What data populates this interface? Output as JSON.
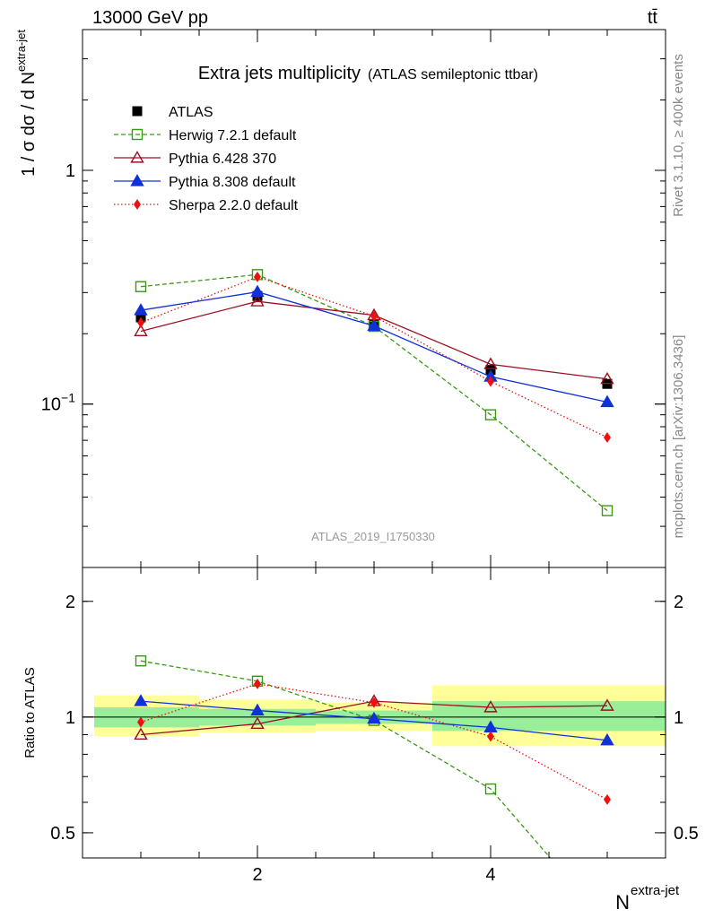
{
  "header": {
    "energy_label": "13000 GeV pp",
    "process_label": "tt̄"
  },
  "side_labels": {
    "rivet": "Rivet 3.1.10, ≥ 400k events",
    "mcplots": "mcplots.cern.ch [arXiv:1306.3436]"
  },
  "chart_data": [
    {
      "type": "line",
      "title": "Extra jets multiplicity",
      "subtitle": "(ATLAS semileptonic ttbar)",
      "analysis_label": "ATLAS_2019_I1750330",
      "xlabel": "N",
      "xlabel_sup": "extra-jet",
      "ylabel": "1 / σ dσ / d N",
      "ylabel_sup": "extra-jet",
      "yscale": "log",
      "xlim": [
        0.5,
        5.5
      ],
      "ylim": [
        0.02,
        4.0
      ],
      "grid": false,
      "legend_position": "top-left",
      "yticks": [
        {
          "value": 1,
          "label": "1"
        },
        {
          "value": 0.1,
          "label": "10",
          "sup": "−1"
        }
      ],
      "x": [
        1,
        2,
        3,
        4,
        5
      ],
      "series": [
        {
          "name": "ATLAS",
          "color": "#000000",
          "dash": "",
          "marker": "square-filled",
          "values": [
            0.235,
            0.29,
            0.22,
            0.14,
            0.122
          ]
        },
        {
          "name": "Herwig 7.2.1 default",
          "color": "#3a9a14",
          "dash": "5,3",
          "marker": "square-open",
          "values": [
            0.318,
            0.358,
            0.215,
            0.09,
            0.035
          ]
        },
        {
          "name": "Pythia 6.428 370",
          "color": "#9b1020",
          "dash": "",
          "marker": "triangle-open",
          "values": [
            0.205,
            0.275,
            0.24,
            0.148,
            0.128
          ]
        },
        {
          "name": "Pythia 8.308 default",
          "color": "#1030d8",
          "dash": "",
          "marker": "triangle-filled",
          "values": [
            0.252,
            0.302,
            0.216,
            0.131,
            0.102
          ]
        },
        {
          "name": "Sherpa 2.2.0 default",
          "color": "#ee1010",
          "dash": "1.5,2.5",
          "marker": "diamond-filled",
          "values": [
            0.223,
            0.35,
            0.238,
            0.125,
            0.072
          ]
        }
      ]
    },
    {
      "type": "line",
      "ylabel": "Ratio to ATLAS",
      "xlabel": "N",
      "xlabel_sup": "extra-jet",
      "yscale": "log",
      "xlim": [
        0.5,
        5.5
      ],
      "ylim": [
        0.43,
        2.45
      ],
      "grid": false,
      "reference_line": 1,
      "xticks": [
        {
          "value": 2,
          "label": "2"
        },
        {
          "value": 4,
          "label": "4"
        }
      ],
      "yticks": [
        {
          "value": 0.5,
          "label": "0.5"
        },
        {
          "value": 1,
          "label": "1"
        },
        {
          "value": 2,
          "label": "2"
        }
      ],
      "x": [
        1,
        2,
        3,
        4,
        5
      ],
      "uncertainty_bins": [
        {
          "xlo": 0.6,
          "xhi": 1.5,
          "stat": [
            0.94,
            1.06
          ],
          "total": [
            0.89,
            1.14
          ]
        },
        {
          "xlo": 1.5,
          "xhi": 2.5,
          "stat": [
            0.95,
            1.05
          ],
          "total": [
            0.91,
            1.11
          ]
        },
        {
          "xlo": 2.5,
          "xhi": 3.5,
          "stat": [
            0.96,
            1.04
          ],
          "total": [
            0.92,
            1.09
          ]
        },
        {
          "xlo": 3.5,
          "xhi": 5.5,
          "stat": [
            0.92,
            1.1
          ],
          "total": [
            0.84,
            1.21
          ]
        }
      ],
      "series": [
        {
          "name": "Herwig 7.2.1 default",
          "color": "#3a9a14",
          "dash": "5,3",
          "marker": "square-open",
          "values": [
            1.4,
            1.24,
            0.98,
            0.65,
            0.29
          ]
        },
        {
          "name": "Pythia 6.428 370",
          "color": "#9b1020",
          "dash": "",
          "marker": "triangle-open",
          "values": [
            0.9,
            0.96,
            1.1,
            1.06,
            1.07
          ]
        },
        {
          "name": "Pythia 8.308 default",
          "color": "#1030d8",
          "dash": "",
          "marker": "triangle-filled",
          "values": [
            1.1,
            1.04,
            0.99,
            0.94,
            0.87
          ]
        },
        {
          "name": "Sherpa 2.2.0 default",
          "color": "#ee1010",
          "dash": "1.5,2.5",
          "marker": "diamond-filled",
          "values": [
            0.97,
            1.22,
            1.09,
            0.89,
            0.61
          ]
        }
      ]
    }
  ]
}
